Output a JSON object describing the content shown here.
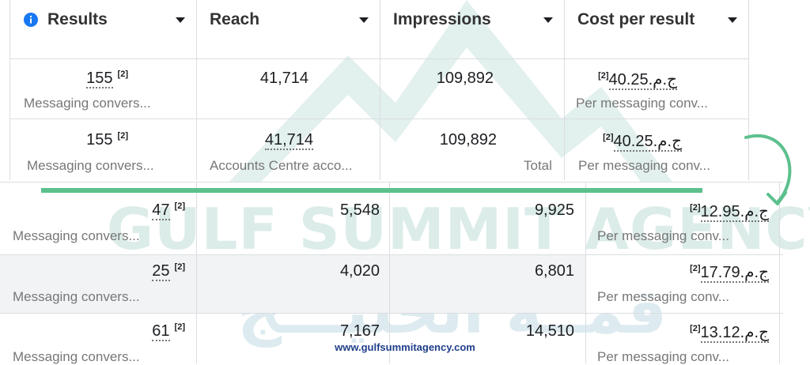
{
  "header": {
    "results": "Results",
    "reach": "Reach",
    "impressions": "Impressions",
    "cost": "Cost per result",
    "info_icon": "info-icon",
    "dropdown_icon": "caret-down-icon"
  },
  "top_rows": [
    {
      "results": "155",
      "results_sub": "Messaging convers...",
      "reach": "41,714",
      "reach_sub": "",
      "impressions": "109,892",
      "impressions_sub": "",
      "cost": "ج.م.40.25",
      "cost_sub": "Per messaging conv..."
    },
    {
      "results": "155",
      "results_sub": "Messaging convers...",
      "reach": "41,714",
      "reach_sub": "Accounts Centre acco...",
      "impressions": "109,892",
      "impressions_sub": "Total",
      "cost": "ج.م.40.25",
      "cost_sub": "Per messaging conv..."
    }
  ],
  "bottom_rows": [
    {
      "results": "47",
      "results_sub": "Messaging convers...",
      "reach": "5,548",
      "impressions": "9,925",
      "cost": "ج.م.12.95",
      "cost_sub": "Per messaging conv..."
    },
    {
      "results": "25",
      "results_sub": "Messaging convers...",
      "reach": "4,020",
      "impressions": "6,801",
      "cost": "ج.م.17.79",
      "cost_sub": "Per messaging conv..."
    },
    {
      "results": "61",
      "results_sub": "Messaging convers...",
      "reach": "7,167",
      "impressions": "14,510",
      "cost": "ج.م.13.12",
      "cost_sub": "Per messaging conv..."
    }
  ],
  "footnote": "[2]",
  "watermark": {
    "text": "GULF SUMMIT AGENCY",
    "arabic": "قمــة الخليـــج"
  },
  "footer_url": "www.gulfsummitagency.com",
  "colors": {
    "accent_green": "#5cc08d",
    "info_blue": "#1877f2",
    "footer_blue": "#1f3f8a"
  }
}
